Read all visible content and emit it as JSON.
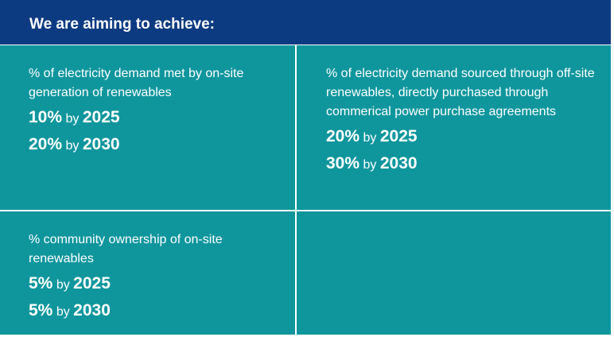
{
  "header": {
    "title": "We are aiming to achieve:"
  },
  "targets": [
    {
      "description": "% of electricity demand met by on-site generation of renewables",
      "items": [
        {
          "value": "10%",
          "by": "by",
          "year": "2025"
        },
        {
          "value": "20%",
          "by": "by",
          "year": "2030"
        }
      ]
    },
    {
      "description": "% of electricity demand sourced through off-site renewables, directly purchased through commerical power purchase agreements",
      "items": [
        {
          "value": "20%",
          "by": "by",
          "year": "2025"
        },
        {
          "value": "30%",
          "by": "by",
          "year": "2030"
        }
      ]
    },
    {
      "description": "% community ownership of on-site renewables",
      "items": [
        {
          "value": "5%",
          "by": "by",
          "year": "2025"
        },
        {
          "value": "5%",
          "by": "by",
          "year": "2030"
        }
      ]
    }
  ],
  "colors": {
    "header_bg": "#0d3b82",
    "cell_bg": "#0f969d",
    "text": "#ffffff"
  }
}
